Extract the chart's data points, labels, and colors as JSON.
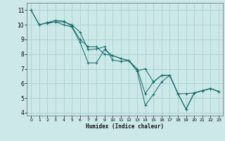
{
  "xlabel": "Humidex (Indice chaleur)",
  "bg_color": "#cce8e8",
  "line_color": "#1a6e6e",
  "grid_color": "#aacfcf",
  "xlim": [
    -0.5,
    23.5
  ],
  "ylim": [
    3.8,
    11.5
  ],
  "xticks": [
    0,
    1,
    2,
    3,
    4,
    5,
    6,
    7,
    8,
    9,
    10,
    11,
    12,
    13,
    14,
    15,
    16,
    17,
    18,
    19,
    20,
    21,
    22,
    23
  ],
  "yticks": [
    4,
    5,
    6,
    7,
    8,
    9,
    10,
    11
  ],
  "lines": [
    {
      "x": [
        0,
        1,
        2,
        3,
        4,
        5,
        6,
        7,
        8,
        9,
        10,
        11,
        12,
        13,
        14,
        15,
        16,
        17,
        18,
        19,
        20,
        21,
        22,
        23
      ],
      "y": [
        11,
        10,
        10.15,
        10.2,
        10.2,
        10.0,
        9.5,
        8.3,
        8.35,
        8.5,
        7.6,
        7.5,
        7.55,
        6.85,
        4.5,
        5.25,
        6.1,
        6.55,
        5.3,
        4.25,
        5.35,
        5.5,
        5.65,
        5.45
      ]
    },
    {
      "x": [
        0,
        1,
        2,
        3,
        4,
        5,
        6,
        7,
        8,
        9,
        10,
        11,
        12,
        13,
        14,
        15,
        16,
        17,
        18,
        19,
        20,
        21,
        22,
        23
      ],
      "y": [
        11,
        10,
        10.15,
        10.3,
        10.25,
        9.9,
        9.0,
        8.5,
        8.5,
        8.0,
        7.9,
        7.7,
        7.55,
        6.85,
        7.0,
        6.1,
        6.55,
        6.55,
        5.3,
        5.3,
        5.35,
        5.5,
        5.65,
        5.45
      ]
    },
    {
      "x": [
        2,
        3,
        4,
        5,
        6,
        7,
        8,
        9,
        10,
        11,
        12,
        13,
        14,
        15,
        16,
        17,
        18,
        19,
        20,
        21,
        22,
        23
      ],
      "y": [
        10.1,
        10.2,
        10.0,
        9.85,
        8.8,
        7.4,
        7.4,
        8.3,
        7.9,
        7.7,
        7.55,
        7.0,
        5.3,
        6.1,
        6.55,
        6.55,
        5.3,
        4.25,
        5.35,
        5.5,
        5.65,
        5.45
      ]
    }
  ]
}
